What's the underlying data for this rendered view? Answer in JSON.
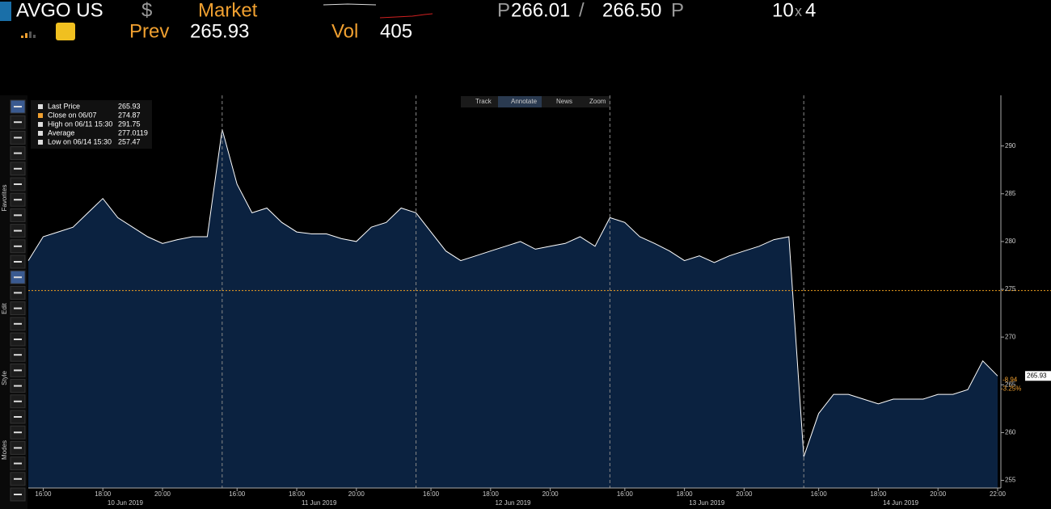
{
  "header": {
    "ticker": "AVGO US",
    "currency": "$",
    "market": "Market",
    "bid_prefix": "P",
    "bid": "266.01",
    "separator": "/",
    "ask": "266.50",
    "ask_suffix": "P",
    "size_bid": "10",
    "size_x": "x",
    "size_ask": "4",
    "prev_label": "Prev",
    "prev": "265.93",
    "vol_label": "Vol",
    "vol": "405"
  },
  "toolbar": [
    "Track",
    "Annotate",
    "News",
    "Zoom"
  ],
  "side_labels": [
    "Favorites",
    "Edit",
    "Style",
    "Modes"
  ],
  "legend": [
    {
      "label": "Last Price",
      "value": "265.93"
    },
    {
      "label": "Close on 06/07",
      "value": "274.87"
    },
    {
      "label": "High on 06/11 15:30",
      "value": "291.75"
    },
    {
      "label": "Average",
      "value": "277.0119"
    },
    {
      "label": "Low on 06/14 15:30",
      "value": "257.47"
    }
  ],
  "chart_data": {
    "type": "area",
    "line_color": "#ffffff",
    "fill_color": "#0b2240",
    "ref_color": "#f0a020",
    "x": [
      0,
      0.5,
      1,
      1.5,
      2,
      2.5,
      3,
      3.5,
      4,
      4.5,
      5,
      5.5,
      6,
      6.5,
      7,
      7.5,
      8,
      8.5,
      9,
      9.5,
      10,
      10.5,
      11,
      11.5,
      12,
      12.5,
      13,
      13.5,
      14,
      14.5,
      15,
      15.5,
      16,
      16.5,
      17,
      17.5,
      18,
      18.5,
      19,
      19.5,
      20,
      20.5,
      21,
      21.5,
      22,
      22.5,
      23,
      23.5,
      24,
      24.5,
      25,
      25.5,
      26,
      26.5,
      27,
      27.5,
      28,
      28.5,
      29,
      29.5,
      30,
      30.5,
      31,
      31.5,
      32,
      32.5
    ],
    "values": [
      278,
      280.5,
      281,
      281.5,
      283,
      284.5,
      282.5,
      281.5,
      280.5,
      279.8,
      280.2,
      280.5,
      280.5,
      291.75,
      286,
      283,
      283.5,
      282,
      281,
      280.8,
      280.8,
      280.3,
      280,
      281.5,
      282,
      283.5,
      283,
      281,
      279,
      278,
      278.5,
      279,
      279.5,
      280,
      279.2,
      279.5,
      279.8,
      280.5,
      279.5,
      282.5,
      282,
      280.5,
      279.8,
      279,
      278,
      278.5,
      277.8,
      278.5,
      279,
      279.5,
      280.2,
      280.5,
      257.47,
      262,
      264,
      264,
      263.5,
      263,
      263.5,
      263.5,
      263.5,
      264,
      264,
      264.5,
      267.5,
      265.93
    ],
    "reference_line": 274.87,
    "last_label": "265.93",
    "change": "-8.94",
    "change_pct": "-3.25%",
    "xlim": [
      0,
      32.5
    ],
    "ylim": [
      254.2,
      295.3
    ],
    "yticks": [
      255,
      260,
      265,
      270,
      275,
      280,
      285,
      290
    ],
    "xticks": [
      {
        "value": 0.5,
        "label": "16:00"
      },
      {
        "value": 2.5,
        "label": "18:00"
      },
      {
        "value": 4.5,
        "label": "20:00"
      },
      {
        "value": 7,
        "label": "16:00"
      },
      {
        "value": 9,
        "label": "18:00"
      },
      {
        "value": 11,
        "label": "20:00"
      },
      {
        "value": 13.5,
        "label": "16:00"
      },
      {
        "value": 15.5,
        "label": "18:00"
      },
      {
        "value": 17.5,
        "label": "20:00"
      },
      {
        "value": 20,
        "label": "16:00"
      },
      {
        "value": 22,
        "label": "18:00"
      },
      {
        "value": 24,
        "label": "20:00"
      },
      {
        "value": 26.5,
        "label": "16:00"
      },
      {
        "value": 28.5,
        "label": "18:00"
      },
      {
        "value": 30.5,
        "label": "20:00"
      },
      {
        "value": 32.5,
        "label": "22:00"
      }
    ],
    "day_labels": [
      {
        "value": 3.25,
        "label": "10 Jun 2019"
      },
      {
        "value": 9.75,
        "label": "11 Jun 2019"
      },
      {
        "value": 16.25,
        "label": "12 Jun 2019"
      },
      {
        "value": 22.75,
        "label": "13 Jun 2019"
      },
      {
        "value": 29.25,
        "label": "14 Jun 2019"
      }
    ]
  }
}
